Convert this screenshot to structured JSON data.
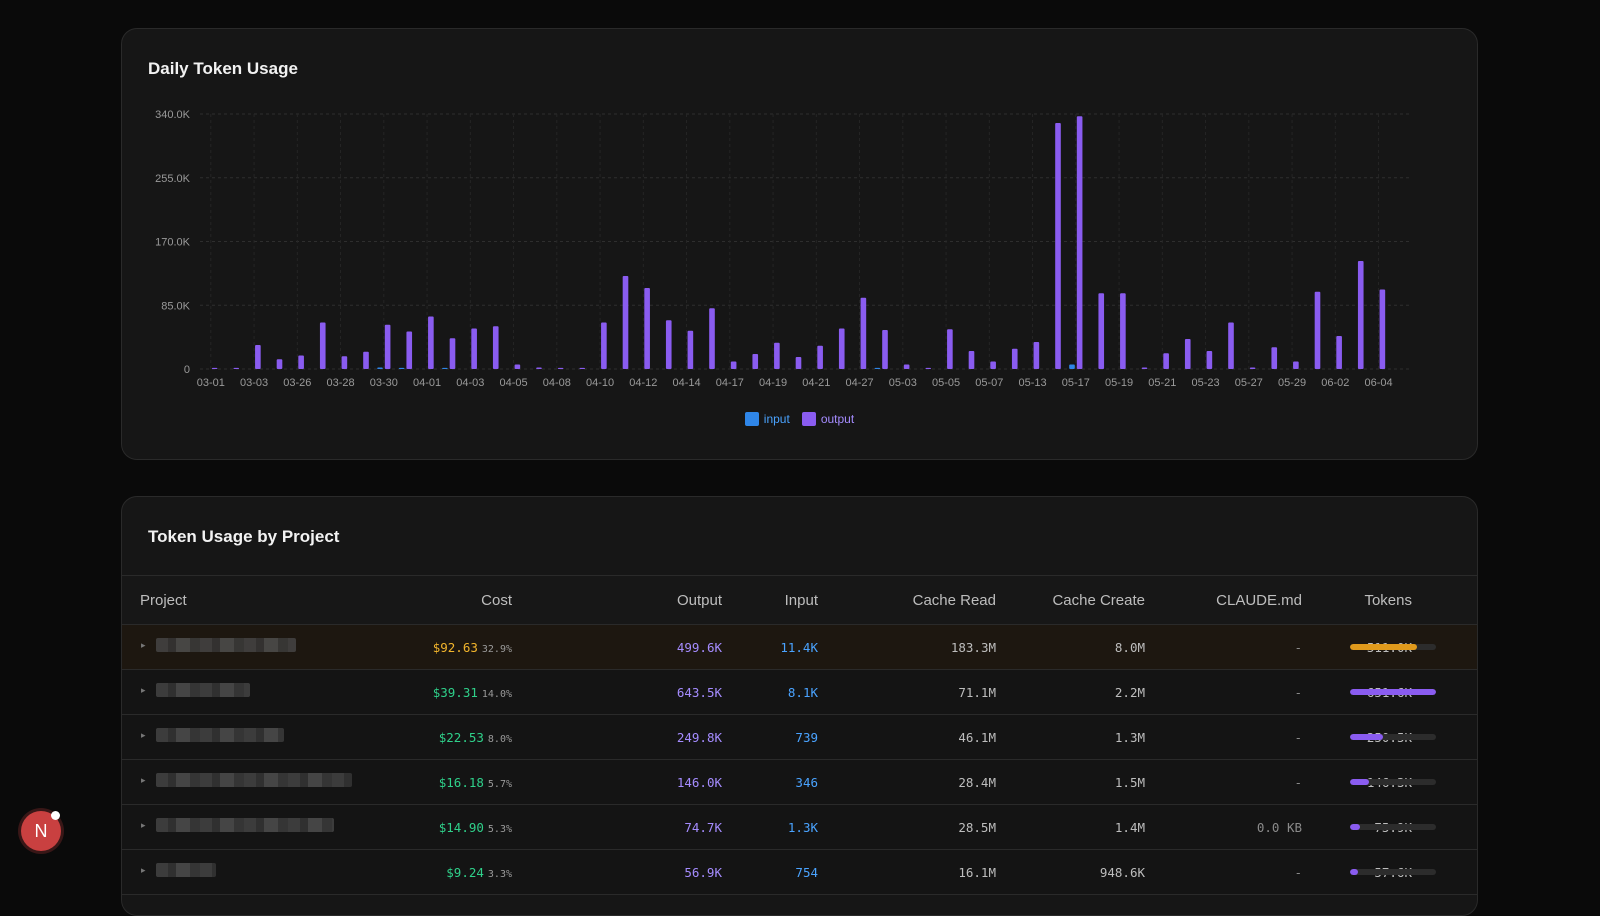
{
  "chart": {
    "title": "Daily Token Usage",
    "legend": [
      {
        "label": "input",
        "color": "#2f86e8"
      },
      {
        "label": "output",
        "color": "#8a5cf0"
      }
    ]
  },
  "chart_data": {
    "type": "bar",
    "title": "Daily Token Usage",
    "ylim": [
      0,
      340000
    ],
    "yticks": [
      "0",
      "85.0K",
      "170.0K",
      "255.0K",
      "340.0K"
    ],
    "ytick_values": [
      0,
      85000,
      170000,
      255000,
      340000
    ],
    "grid": true,
    "legend_position": "bottom",
    "categories": [
      "03-01",
      "03-02",
      "03-03",
      "03-04",
      "03-26",
      "03-27",
      "03-28",
      "03-29",
      "03-30",
      "03-31",
      "04-01",
      "04-02",
      "04-03",
      "04-04",
      "04-05",
      "04-06",
      "04-08",
      "04-09",
      "04-10",
      "04-11",
      "04-12",
      "04-13",
      "04-14",
      "04-15",
      "04-17",
      "04-18",
      "04-19",
      "04-20",
      "04-21",
      "04-22",
      "04-27",
      "04-28",
      "05-03",
      "05-04",
      "05-05",
      "05-06",
      "05-07",
      "05-08",
      "05-13",
      "05-14",
      "05-17",
      "05-18",
      "05-19",
      "05-20",
      "05-21",
      "05-22",
      "05-23",
      "05-24",
      "05-27",
      "05-28",
      "05-29",
      "05-30",
      "06-02",
      "06-03",
      "06-04",
      "06-05"
    ],
    "xtick_labels": [
      "03-01",
      "03-03",
      "03-26",
      "03-28",
      "03-30",
      "04-01",
      "04-03",
      "04-05",
      "04-08",
      "04-10",
      "04-12",
      "04-14",
      "04-17",
      "04-19",
      "04-21",
      "04-27",
      "05-03",
      "05-05",
      "05-07",
      "05-13",
      "05-17",
      "05-19",
      "05-21",
      "05-23",
      "05-27",
      "05-29",
      "06-02",
      "06-04"
    ],
    "series": [
      {
        "name": "input",
        "values": [
          0,
          0,
          0,
          0,
          0,
          0,
          0,
          0,
          2000,
          1500,
          0,
          1500,
          0,
          0,
          0,
          0,
          0,
          0,
          0,
          0,
          0,
          0,
          0,
          0,
          0,
          0,
          0,
          0,
          0,
          0,
          0,
          1500,
          0,
          0,
          0,
          0,
          0,
          0,
          0,
          0,
          6000,
          0,
          0,
          0,
          0,
          0,
          0,
          0,
          0,
          0,
          0,
          0,
          0,
          0,
          0,
          0
        ]
      },
      {
        "name": "output",
        "values": [
          1500,
          1500,
          32000,
          13000,
          18000,
          62000,
          17000,
          23000,
          59000,
          50000,
          70000,
          41000,
          54000,
          57000,
          6000,
          2000,
          1500,
          1500,
          62000,
          124000,
          108000,
          65000,
          51000,
          81000,
          10000,
          20000,
          35000,
          16000,
          31000,
          54000,
          95000,
          52000,
          6000,
          1500,
          53000,
          24000,
          10000,
          27000,
          36000,
          328000,
          337000,
          101000,
          101000,
          2000,
          21000,
          40000,
          24000,
          62000,
          2000,
          29000,
          10000,
          103000,
          44000,
          144000,
          106000,
          0
        ]
      }
    ]
  },
  "table": {
    "title": "Token Usage by Project",
    "columns": [
      "Project",
      "Cost",
      "Output",
      "Input",
      "Cache Read",
      "Cache Create",
      "CLAUDE.md",
      "Tokens"
    ],
    "rows": [
      {
        "cost": "$92.63",
        "pct": "32.9%",
        "output": "499.6K",
        "input": "11.4K",
        "cache_read": "183.3M",
        "cache_create": "8.0M",
        "claude_md": "-",
        "tokens": "511.0K",
        "share": 0.78,
        "bar_color": "#e09a1c",
        "cost_color": "#f2b52c",
        "highlight": true,
        "name_w": 140
      },
      {
        "cost": "$39.31",
        "pct": "14.0%",
        "output": "643.5K",
        "input": "8.1K",
        "cache_read": "71.1M",
        "cache_create": "2.2M",
        "claude_md": "-",
        "tokens": "651.6K",
        "share": 1.0,
        "bar_color": "#8a5cf0",
        "cost_color": "#2fd08a",
        "highlight": false,
        "name_w": 94
      },
      {
        "cost": "$22.53",
        "pct": "8.0%",
        "output": "249.8K",
        "input": "739",
        "cache_read": "46.1M",
        "cache_create": "1.3M",
        "claude_md": "-",
        "tokens": "250.5K",
        "share": 0.38,
        "bar_color": "#8a5cf0",
        "cost_color": "#2fd08a",
        "highlight": false,
        "name_w": 128
      },
      {
        "cost": "$16.18",
        "pct": "5.7%",
        "output": "146.0K",
        "input": "346",
        "cache_read": "28.4M",
        "cache_create": "1.5M",
        "claude_md": "-",
        "tokens": "146.3K",
        "share": 0.22,
        "bar_color": "#8a5cf0",
        "cost_color": "#2fd08a",
        "highlight": false,
        "name_w": 196
      },
      {
        "cost": "$14.90",
        "pct": "5.3%",
        "output": "74.7K",
        "input": "1.3K",
        "cache_read": "28.5M",
        "cache_create": "1.4M",
        "claude_md": "0.0 KB",
        "tokens": "75.9K",
        "share": 0.12,
        "bar_color": "#8a5cf0",
        "cost_color": "#2fd08a",
        "highlight": false,
        "name_w": 178
      },
      {
        "cost": "$9.24",
        "pct": "3.3%",
        "output": "56.9K",
        "input": "754",
        "cache_read": "16.1M",
        "cache_create": "948.6K",
        "claude_md": "-",
        "tokens": "57.6K",
        "share": 0.09,
        "bar_color": "#8a5cf0",
        "cost_color": "#2fd08a",
        "highlight": false,
        "name_w": 60
      }
    ]
  },
  "colors": {
    "output_text": "#a58cff",
    "input_text": "#4aa3ff",
    "muted": "#bdbdbd"
  },
  "avatar": {
    "letter": "N"
  }
}
